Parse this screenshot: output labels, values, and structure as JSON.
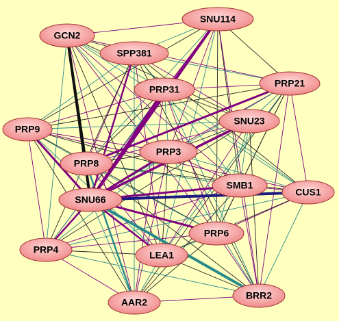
{
  "nodes": [
    {
      "label": "SNU114"
    },
    {
      "label": "GCN2"
    },
    {
      "label": "SPP381"
    },
    {
      "label": "PRP21"
    },
    {
      "label": "PRP31"
    },
    {
      "label": "SNU23"
    },
    {
      "label": "PRP9"
    },
    {
      "label": "PRP3"
    },
    {
      "label": "PRP8"
    },
    {
      "label": "SMB1"
    },
    {
      "label": "CUS1"
    },
    {
      "label": "SNU66"
    },
    {
      "label": "PRP6"
    },
    {
      "label": "PRP4"
    },
    {
      "label": "LEA1"
    },
    {
      "label": "AAR2"
    },
    {
      "label": "BRR2"
    }
  ]
}
